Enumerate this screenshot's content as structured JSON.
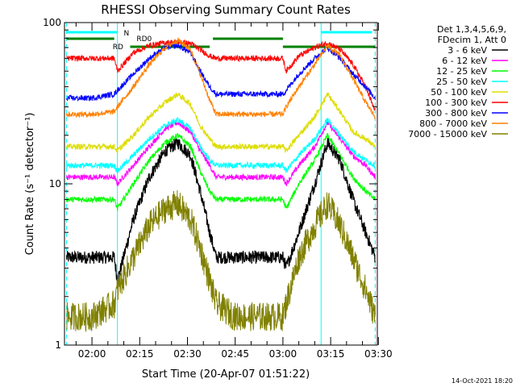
{
  "chart_data": {
    "type": "line",
    "title": "RHESSI Observing Summary Count Rates",
    "xlabel": "Start Time (20-Apr-07 01:51:22)",
    "ylabel": "Count Rate (s⁻¹ detector⁻¹)",
    "y_scale": "log",
    "xlim": [
      "01:51:22",
      "03:29:40"
    ],
    "ylim": [
      1,
      100
    ],
    "x_ticks": [
      "02:00",
      "02:15",
      "02:30",
      "02:45",
      "03:00",
      "03:15",
      "03:30"
    ],
    "y_ticks": [
      "1",
      "10",
      "100"
    ],
    "grid": false,
    "legend_position": "right",
    "legend_title": [
      "Det 1,3,4,5,6,9,",
      "FDecim 1, Att 0"
    ],
    "legend_entries": [
      "3 - 6 keV",
      "6 - 12 keV",
      "12 - 25 keV",
      "25 - 50 keV",
      "50 - 100 keV",
      "100 - 300 keV",
      "300 - 800 keV",
      "800 - 7000 keV",
      "7000 - 15000 keV"
    ],
    "series": [
      {
        "name": "3 - 6 keV",
        "color": "#000000",
        "x": [
          "01:52",
          "02:00",
          "02:07",
          "02:08",
          "02:13",
          "02:18",
          "02:23",
          "02:27",
          "02:31",
          "02:34",
          "02:37",
          "02:39",
          "02:45",
          "03:00",
          "03:01",
          "03:05",
          "03:10",
          "03:14",
          "03:18",
          "03:22",
          "03:26",
          "03:29"
        ],
        "y": [
          3.5,
          3.5,
          3.5,
          2.5,
          6,
          11,
          16,
          18,
          15,
          9,
          5,
          3.5,
          3.5,
          3.5,
          3,
          5,
          10,
          18,
          14,
          8,
          5,
          3.5
        ]
      },
      {
        "name": "6 - 12 keV",
        "color": "#ff00ff",
        "x": [
          "01:52",
          "02:00",
          "02:07",
          "02:08",
          "02:13",
          "02:18",
          "02:23",
          "02:27",
          "02:31",
          "02:34",
          "02:37",
          "02:39",
          "02:45",
          "03:00",
          "03:01",
          "03:05",
          "03:10",
          "03:14",
          "03:18",
          "03:22",
          "03:26",
          "03:29"
        ],
        "y": [
          11,
          11,
          11,
          10,
          13,
          17,
          22,
          24,
          21,
          16,
          13,
          11,
          11,
          11,
          10,
          13,
          17,
          24,
          19,
          15,
          13,
          11
        ]
      },
      {
        "name": "12 - 25 keV",
        "color": "#00ff00",
        "x": [
          "01:52",
          "02:00",
          "02:07",
          "02:08",
          "02:13",
          "02:18",
          "02:23",
          "02:27",
          "02:31",
          "02:34",
          "02:37",
          "02:39",
          "02:45",
          "03:00",
          "03:01",
          "03:05",
          "03:10",
          "03:14",
          "03:18",
          "03:22",
          "03:26",
          "03:29"
        ],
        "y": [
          8,
          8,
          8,
          7,
          10,
          14,
          18,
          20,
          17,
          12,
          9,
          8,
          8,
          8,
          7,
          10,
          14,
          20,
          15,
          11,
          9,
          8
        ]
      },
      {
        "name": "25 - 50 keV",
        "color": "#00ffff",
        "x": [
          "01:52",
          "02:00",
          "02:07",
          "02:08",
          "02:13",
          "02:18",
          "02:23",
          "02:27",
          "02:31",
          "02:34",
          "02:37",
          "02:39",
          "02:45",
          "03:00",
          "03:01",
          "03:05",
          "03:10",
          "03:14",
          "03:18",
          "03:22",
          "03:26",
          "03:29"
        ],
        "y": [
          13,
          13,
          13,
          12,
          15,
          19,
          23,
          25,
          22,
          17,
          14,
          13,
          13,
          13,
          12,
          15,
          19,
          25,
          20,
          16,
          14,
          13
        ]
      },
      {
        "name": "50 - 100 keV",
        "color": "#dddd00",
        "x": [
          "01:52",
          "02:00",
          "02:07",
          "02:08",
          "02:13",
          "02:18",
          "02:23",
          "02:27",
          "02:31",
          "02:34",
          "02:37",
          "02:39",
          "02:45",
          "03:00",
          "03:01",
          "03:05",
          "03:10",
          "03:14",
          "03:18",
          "03:22",
          "03:26",
          "03:29"
        ],
        "y": [
          17,
          17,
          17,
          16,
          20,
          26,
          32,
          36,
          31,
          23,
          19,
          17,
          17,
          17,
          16,
          20,
          26,
          36,
          28,
          21,
          19,
          17
        ]
      },
      {
        "name": "100 - 300 keV",
        "color": "#ff0000",
        "x": [
          "01:52",
          "02:00",
          "02:07",
          "02:08",
          "02:13",
          "02:18",
          "02:23",
          "02:27",
          "02:31",
          "02:34",
          "02:37",
          "02:39",
          "02:45",
          "03:00",
          "03:01",
          "03:05",
          "03:10",
          "03:14",
          "03:18",
          "03:22",
          "03:26",
          "03:29"
        ],
        "y": [
          60,
          60,
          60,
          50,
          65,
          72,
          75,
          76,
          74,
          68,
          62,
          60,
          60,
          60,
          50,
          62,
          70,
          75,
          68,
          55,
          40,
          28
        ]
      },
      {
        "name": "300 - 800 keV",
        "color": "#0000ff",
        "x": [
          "01:52",
          "02:00",
          "02:07",
          "02:08",
          "02:13",
          "02:18",
          "02:23",
          "02:27",
          "02:31",
          "02:34",
          "02:37",
          "02:39",
          "02:45",
          "03:00",
          "03:01",
          "03:05",
          "03:10",
          "03:14",
          "03:18",
          "03:22",
          "03:26",
          "03:29"
        ],
        "y": [
          34,
          34,
          36,
          38,
          48,
          60,
          70,
          72,
          65,
          50,
          40,
          36,
          36,
          36,
          38,
          48,
          60,
          70,
          60,
          48,
          40,
          34
        ]
      },
      {
        "name": "800 - 7000 keV",
        "color": "#ff8000",
        "x": [
          "01:52",
          "02:00",
          "02:07",
          "02:08",
          "02:13",
          "02:18",
          "02:23",
          "02:27",
          "02:31",
          "02:34",
          "02:37",
          "02:39",
          "02:45",
          "03:00",
          "03:01",
          "03:05",
          "03:10",
          "03:14",
          "03:18",
          "03:22",
          "03:26",
          "03:29"
        ],
        "y": [
          27,
          27,
          28,
          30,
          40,
          55,
          70,
          78,
          68,
          48,
          33,
          27,
          27,
          27,
          30,
          40,
          55,
          72,
          62,
          45,
          32,
          26
        ]
      },
      {
        "name": "7000 - 15000 keV",
        "color": "#808000",
        "x": [
          "01:52",
          "02:00",
          "02:07",
          "02:08",
          "02:13",
          "02:18",
          "02:23",
          "02:27",
          "02:31",
          "02:34",
          "02:37",
          "02:39",
          "02:45",
          "03:00",
          "03:01",
          "03:05",
          "03:10",
          "03:14",
          "03:18",
          "03:22",
          "03:26",
          "03:29"
        ],
        "y": [
          1.5,
          1.5,
          1.8,
          2.2,
          3.5,
          5.5,
          7,
          7.5,
          6,
          4,
          2.5,
          1.8,
          1.5,
          1.5,
          1.8,
          3.5,
          5.5,
          7.5,
          5.5,
          3.5,
          2.2,
          1.5
        ]
      }
    ],
    "flags": [
      {
        "label": "N",
        "color": "#00ffff"
      },
      {
        "label": "RD",
        "color": "#008000"
      },
      {
        "label": "RD0",
        "color": "#008000"
      }
    ],
    "footer_date": "14-Oct-2021 18:20"
  }
}
